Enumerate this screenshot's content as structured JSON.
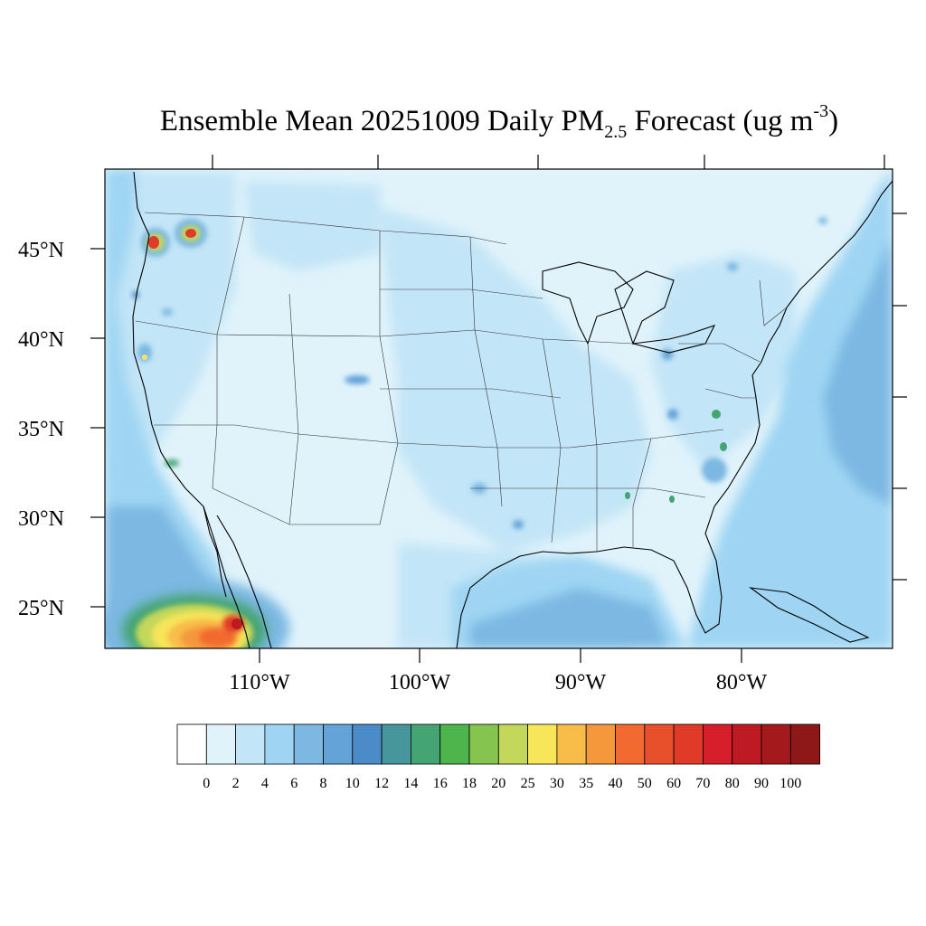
{
  "title": {
    "prefix": "Ensemble Mean 20251009 Daily PM",
    "subscript": "2.5",
    "middle": " Forecast (ug m",
    "superscript": "-3",
    "suffix": ")"
  },
  "latitude_labels": [
    "45°N",
    "40°N",
    "35°N",
    "30°N",
    "25°N"
  ],
  "longitude_labels": [
    "110°W",
    "100°W",
    "90°W",
    "80°W"
  ],
  "colorbar": {
    "labels": [
      "0",
      "2",
      "4",
      "6",
      "8",
      "10",
      "12",
      "14",
      "16",
      "18",
      "20",
      "25",
      "30",
      "35",
      "40",
      "50",
      "60",
      "70",
      "80",
      "90",
      "100"
    ],
    "colors": [
      "#ffffff",
      "#e0f3fb",
      "#c2e5f7",
      "#9fd5f3",
      "#7cb8e2",
      "#63a3d8",
      "#4b8bc8",
      "#46969b",
      "#45a473",
      "#4eb44c",
      "#85c44e",
      "#c3d75a",
      "#f7e55a",
      "#f8bd48",
      "#f5983c",
      "#f26a2f",
      "#e8502b",
      "#df3b28",
      "#d61f2a",
      "#bd1a24",
      "#a3191c",
      "#8e1818"
    ]
  },
  "map": {
    "background_color": "#e0f3fb",
    "ocean_color": "#9fd5f3"
  }
}
